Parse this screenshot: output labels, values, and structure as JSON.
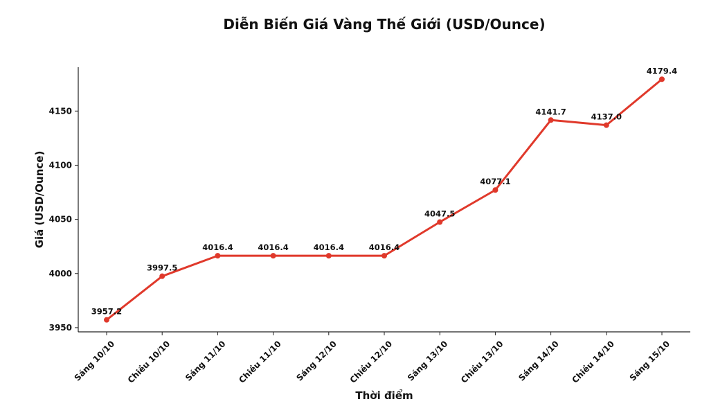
{
  "chart_data": {
    "type": "line",
    "title": "Diễn Biến Giá Vàng Thế Giới (USD/Ounce)",
    "xlabel": "Thời điểm",
    "ylabel": "Giá (USD/Ounce)",
    "categories": [
      "Sáng 10/10",
      "Chiều 10/10",
      "Sáng 11/10",
      "Chiều 11/10",
      "Sáng 12/10",
      "Chiều 12/10",
      "Sáng 13/10",
      "Chiều 13/10",
      "Sáng 14/10",
      "Chiều 14/10",
      "Sáng 15/10"
    ],
    "series": [
      {
        "name": "Giá",
        "color": "#e0392b",
        "values": [
          3957.2,
          3997.5,
          4016.4,
          4016.4,
          4016.4,
          4016.4,
          4047.5,
          4077.1,
          4141.7,
          4137.0,
          4179.4
        ],
        "value_labels": [
          "3957.2",
          "3997.5",
          "4016.4",
          "4016.4",
          "4016.4",
          "4016.4",
          "4047.5",
          "4077.1",
          "4141.7",
          "4137.0",
          "4179.4"
        ]
      }
    ],
    "ylim": [
      3946.1,
      4190.5
    ],
    "yticks": [
      3950,
      4000,
      4050,
      4100,
      4150
    ],
    "grid": false
  }
}
